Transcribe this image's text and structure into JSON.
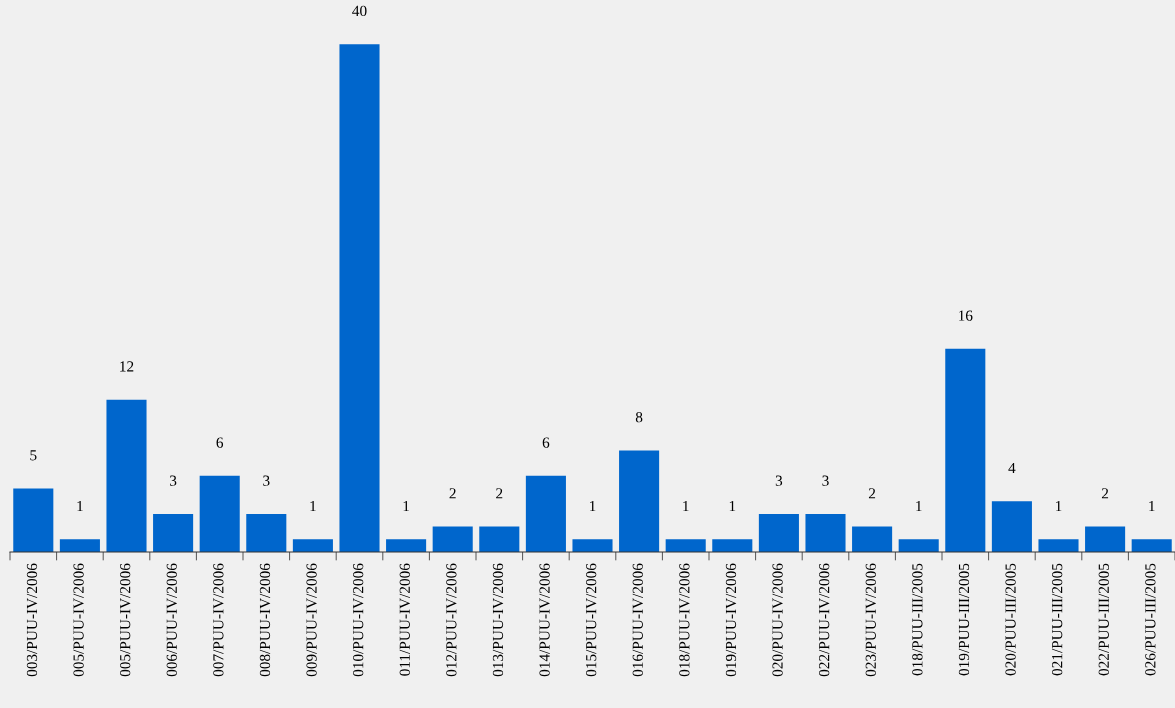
{
  "chart_data": {
    "type": "bar",
    "categories": [
      "003/PUU-IV/2006",
      "005/PUU-IV/2006",
      "005/PUU-IV/2006",
      "006/PUU-IV/2006",
      "007/PUU-IV/2006",
      "008/PUU-IV/2006",
      "009/PUU-IV/2006",
      "010/PUU-IV/2006",
      "011/PUU-IV/2006",
      "012/PUU-IV/2006",
      "013/PUU-IV/2006",
      "014/PUU-IV/2006",
      "015/PUU-IV/2006",
      "016/PUU-IV/2006",
      "018/PUU-IV/2006",
      "019/PUU-IV/2006",
      "020/PUU-IV/2006",
      "022/PUU-IV/2006",
      "023/PUU-IV/2006",
      "018/PUU-III/2005",
      "019/PUU-III/2005",
      "020/PUU-III/2005",
      "021/PUU-III/2005",
      "022/PUU-III/2005",
      "026/PUU-III/2005"
    ],
    "values": [
      5,
      1,
      12,
      3,
      6,
      3,
      1,
      40,
      1,
      2,
      2,
      6,
      1,
      8,
      1,
      1,
      3,
      3,
      2,
      1,
      16,
      4,
      1,
      2,
      1
    ],
    "color": "#0066cc",
    "data_labels": true,
    "grid": false
  }
}
